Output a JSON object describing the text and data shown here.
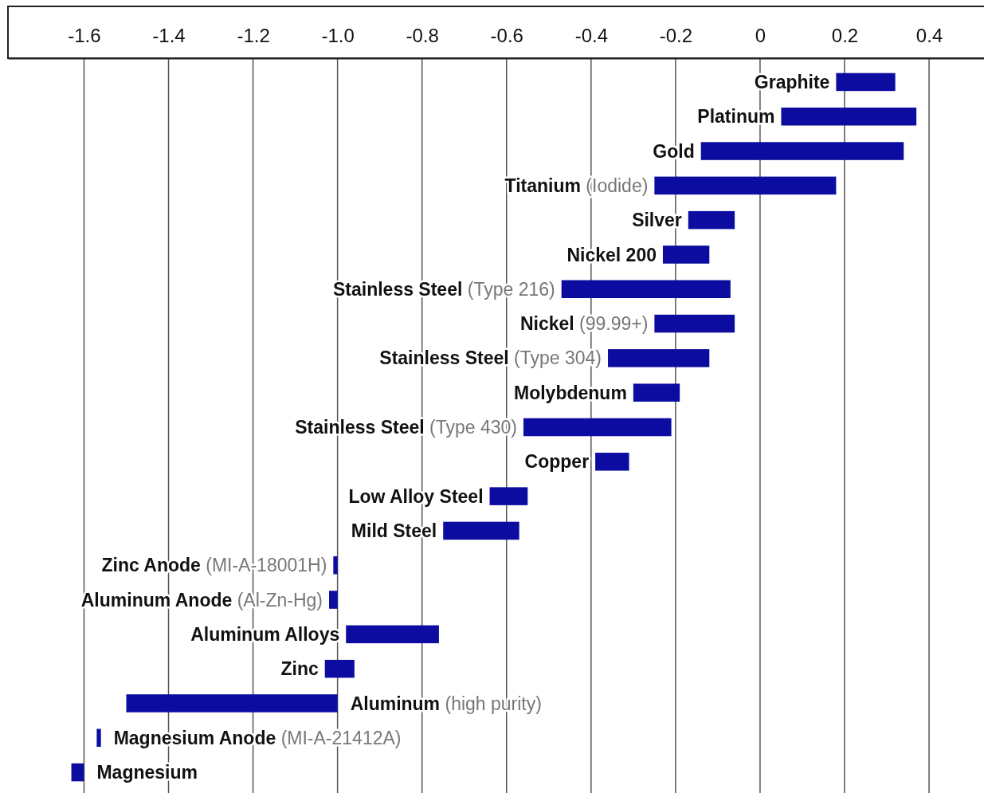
{
  "chart_data": {
    "type": "bar",
    "orientation": "horizontal",
    "categories": [
      "Graphite",
      "Platinum",
      "Gold",
      "Titanium (Iodide)",
      "Silver",
      "Nickel 200",
      "Stainless Steel (Type 216)",
      "Nickel (99.99+)",
      "Stainless Steel (Type 304)",
      "Molybdenum",
      "Stainless Steel (Type 430)",
      "Copper",
      "Low Alloy Steel",
      "Mild Steel",
      "Zinc Anode (MI-A-18001H)",
      "Aluminum Anode (Al-Zn-Hg)",
      "Aluminum Alloys",
      "Zinc",
      "Aluminum (high purity)",
      "Magnesium Anode (MI-A-21412A)",
      "Magnesium"
    ],
    "base": [
      0.18,
      0.05,
      -0.14,
      -0.25,
      -0.17,
      -0.23,
      -0.47,
      -0.25,
      -0.36,
      -0.3,
      -0.56,
      -0.39,
      -0.64,
      -0.75,
      -1.01,
      -1.02,
      -0.98,
      -1.03,
      -1.5,
      -1.57,
      -1.63
    ],
    "values": [
      0.14,
      0.32,
      0.48,
      0.43,
      0.11,
      0.11,
      0.4,
      0.19,
      0.24,
      0.11,
      0.35,
      0.08,
      0.09,
      0.18,
      0.01,
      0.02,
      0.22,
      0.07,
      0.5,
      0.01,
      0.03
    ],
    "color": "#0c0ca0",
    "xlim": [
      -1.78,
      0.53
    ],
    "xticks": [
      -1.6,
      -1.4,
      -1.2,
      {
        "value": -1,
        "label": "-1.0"
      },
      -0.8,
      -0.6,
      -0.4,
      -0.2,
      0,
      0.2,
      0.4
    ],
    "grid": "x"
  }
}
